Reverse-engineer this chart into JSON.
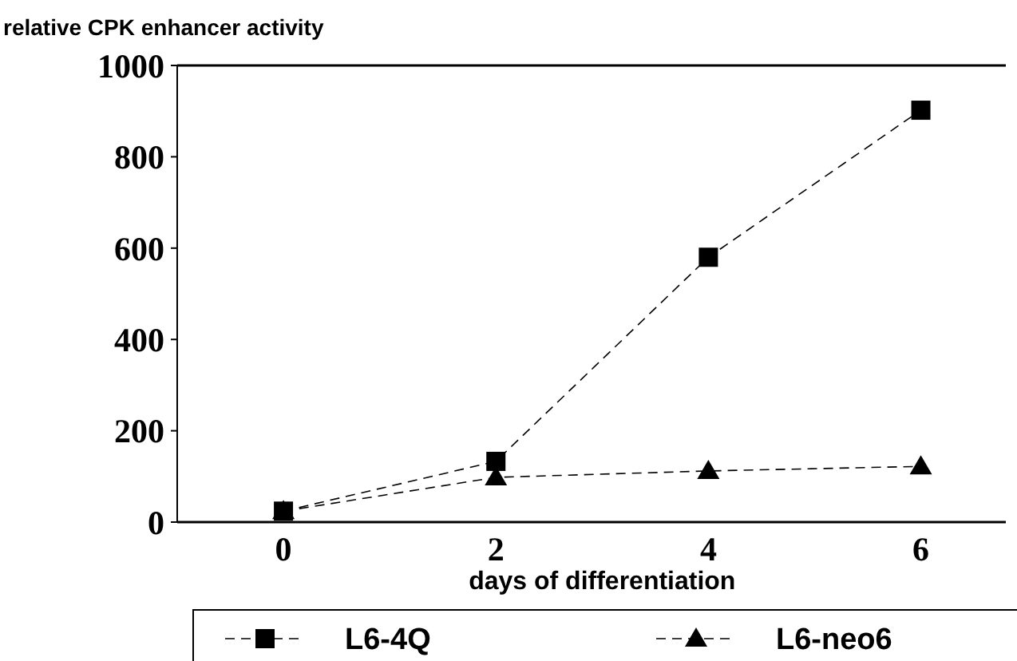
{
  "chart_data": {
    "type": "line",
    "ylabel": "relative CPK enhancer activity",
    "xlabel": "days of differentiation",
    "x": [
      0,
      2,
      4,
      6
    ],
    "xlim": [
      -1,
      6.8
    ],
    "xticks": [
      0,
      2,
      4,
      6
    ],
    "ylim": [
      0,
      1000
    ],
    "yticks": [
      0,
      200,
      400,
      600,
      800,
      1000
    ],
    "grid": false,
    "legend": "bottom",
    "line_style": "dashed",
    "series": [
      {
        "name": "L6-4Q",
        "color": "#000000",
        "marker": "square",
        "values": [
          24,
          133,
          580,
          902
        ]
      },
      {
        "name": "L6-neo6",
        "color": "#000000",
        "marker": "triangle",
        "values": [
          24,
          98,
          112,
          122
        ]
      }
    ]
  }
}
